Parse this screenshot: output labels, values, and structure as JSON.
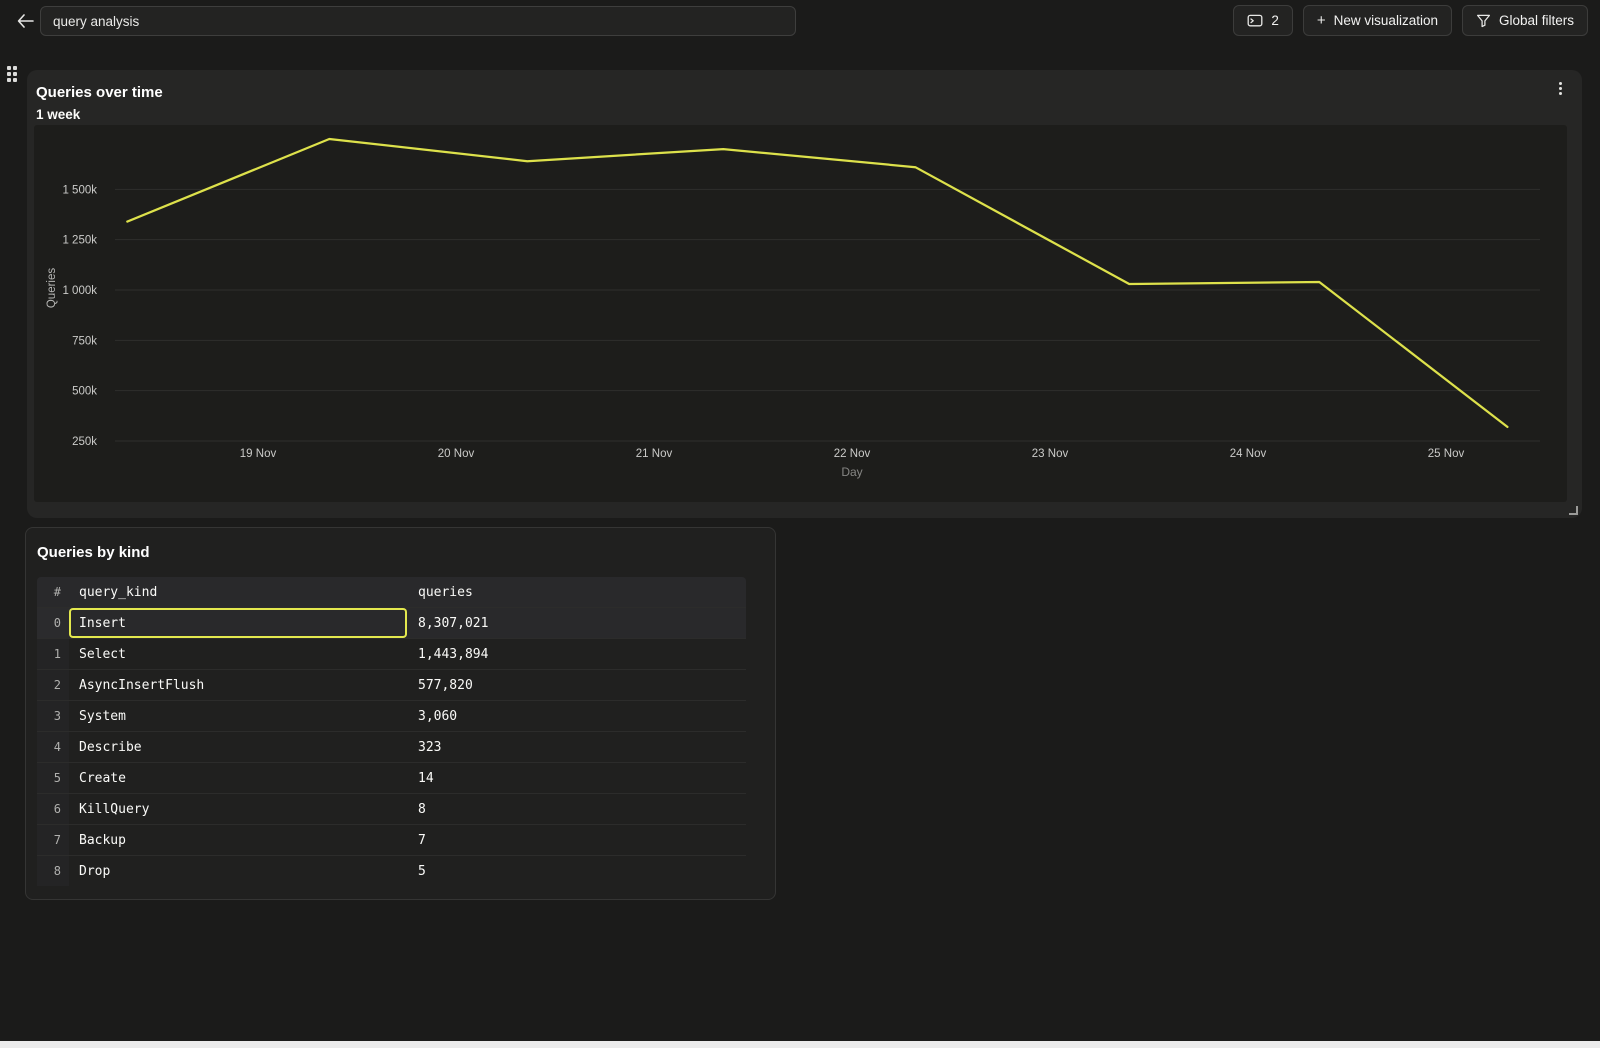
{
  "colors": {
    "accent_line": "#dde14b",
    "selection_border": "#e3e84e",
    "page_background": "#1b1b1a",
    "card_background": "#262625",
    "plot_background": "#1d1d1b"
  },
  "topbar": {
    "back_icon": "arrow-left",
    "title_value": "query analysis",
    "console_button": {
      "icon": "console-window-icon",
      "label": "2"
    },
    "new_visualization_button": {
      "icon": "plus-icon",
      "label": "New visualization"
    },
    "global_filters_button": {
      "icon": "funnel-icon",
      "label": "Global filters"
    }
  },
  "chart_card": {
    "title": "Queries over time",
    "subtitle": "1 week",
    "menu_icon": "kebab-menu-icon",
    "drag_icon": "drag-dots-icon",
    "resize_icon": "resize-corner-icon"
  },
  "chart_data": {
    "type": "line",
    "title": "Queries over time",
    "subtitle": "1 week",
    "xlabel": "Day",
    "ylabel": "Queries",
    "line_color": "#dde14b",
    "grid": "horizontal",
    "legend": "none",
    "y_ticks": [
      {
        "value": 250000,
        "label": "250k"
      },
      {
        "value": 500000,
        "label": "500k"
      },
      {
        "value": 750000,
        "label": "750k"
      },
      {
        "value": 1000000,
        "label": "1 000k"
      },
      {
        "value": 1250000,
        "label": "1 250k"
      },
      {
        "value": 1500000,
        "label": "1 500k"
      }
    ],
    "x_ticks": [
      {
        "day_offset": 0,
        "label": "19 Nov"
      },
      {
        "day_offset": 1,
        "label": "20 Nov"
      },
      {
        "day_offset": 2,
        "label": "21 Nov"
      },
      {
        "day_offset": 3,
        "label": "22 Nov"
      },
      {
        "day_offset": 4,
        "label": "23 Nov"
      },
      {
        "day_offset": 5,
        "label": "24 Nov"
      },
      {
        "day_offset": 6,
        "label": "25 Nov"
      }
    ],
    "series": [
      {
        "name": "Queries",
        "points": [
          {
            "date": "18 Nov",
            "day_offset": -0.66,
            "value": 1340000
          },
          {
            "date": "19 Nov",
            "day_offset": 0.36,
            "value": 1750000
          },
          {
            "date": "20 Nov",
            "day_offset": 1.36,
            "value": 1640000
          },
          {
            "date": "21 Nov",
            "day_offset": 2.35,
            "value": 1700000
          },
          {
            "date": "22 Nov",
            "day_offset": 3.32,
            "value": 1610000
          },
          {
            "date": "23 Nov",
            "day_offset": 4.4,
            "value": 1030000
          },
          {
            "date": "24 Nov",
            "day_offset": 5.36,
            "value": 1040000
          },
          {
            "date": "25 Nov",
            "day_offset": 6.31,
            "value": 320000
          }
        ]
      }
    ]
  },
  "table_card": {
    "title": "Queries by kind",
    "columns": [
      "#",
      "query_kind",
      "queries"
    ],
    "rows": [
      {
        "index": "0",
        "query_kind": "Insert",
        "queries": "8,307,021",
        "selected_cell": "query_kind"
      },
      {
        "index": "1",
        "query_kind": "Select",
        "queries": "1,443,894"
      },
      {
        "index": "2",
        "query_kind": "AsyncInsertFlush",
        "queries": "577,820"
      },
      {
        "index": "3",
        "query_kind": "System",
        "queries": "3,060"
      },
      {
        "index": "4",
        "query_kind": "Describe",
        "queries": "323"
      },
      {
        "index": "5",
        "query_kind": "Create",
        "queries": "14"
      },
      {
        "index": "6",
        "query_kind": "KillQuery",
        "queries": "8"
      },
      {
        "index": "7",
        "query_kind": "Backup",
        "queries": "7"
      },
      {
        "index": "8",
        "query_kind": "Drop",
        "queries": "5"
      }
    ]
  }
}
